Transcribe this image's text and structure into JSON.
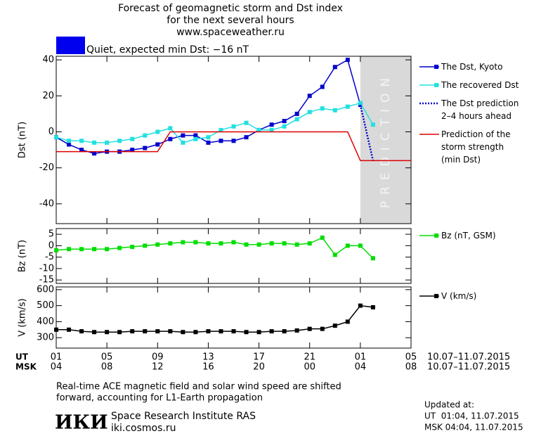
{
  "header": {
    "title_lines": [
      "Forecast of geomagnetic storm and Dst index",
      "for the next several hours",
      "www.spaceweather.ru"
    ],
    "status": "Quiet, expected min Dst: −16 nT",
    "status_color": "#0000ee"
  },
  "chart_data": [
    {
      "type": "line",
      "ylabel": "Dst (nT)",
      "xlim": [
        0,
        28
      ],
      "ylim": [
        -51,
        42
      ],
      "yticks": [
        -40,
        -20,
        0,
        20,
        40
      ],
      "prediction_region": {
        "x": [
          24,
          28
        ],
        "label": "PREDICTION",
        "color": "#d9d9d9"
      },
      "series": [
        {
          "name": "The Dst, Kyoto",
          "color": "#0000cc",
          "style": "line-markers",
          "x": [
            0,
            1,
            2,
            3,
            4,
            5,
            6,
            7,
            8,
            9,
            10,
            11,
            12,
            13,
            14,
            15,
            16,
            17,
            18,
            19,
            20,
            21,
            22,
            23,
            24
          ],
          "values": [
            -3,
            -7,
            -10,
            -12,
            -11,
            -11,
            -10,
            -9,
            -7,
            -4,
            -2,
            -2,
            -6,
            -5,
            -5,
            -3,
            1,
            4,
            6,
            10,
            20,
            25,
            36,
            40,
            15
          ]
        },
        {
          "name": "The recovered Dst",
          "color": "#22e0e0",
          "style": "line-markers",
          "x": [
            0,
            1,
            2,
            3,
            4,
            5,
            6,
            7,
            8,
            9,
            10,
            11,
            12,
            13,
            14,
            15,
            16,
            17,
            18,
            19,
            20,
            21,
            22,
            23,
            24,
            25
          ],
          "values": [
            -3,
            -5,
            -5,
            -6,
            -6,
            -5,
            -4,
            -2,
            0,
            2,
            -6,
            -4,
            -3,
            1,
            3,
            5,
            1,
            1,
            3,
            7,
            11,
            13,
            12,
            14,
            16,
            4
          ]
        },
        {
          "name": "The Dst prediction\n2–4 hours ahead",
          "color": "#0000cc",
          "style": "dotted",
          "x": [
            24,
            25
          ],
          "values": [
            15,
            -16
          ]
        },
        {
          "name": "Prediction of the\nstorm strength\n(min Dst)",
          "color": "#dd0000",
          "style": "line",
          "x": [
            0,
            8,
            9,
            23,
            24,
            28
          ],
          "values": [
            -11,
            -11,
            0,
            0,
            -16,
            -16
          ]
        }
      ]
    },
    {
      "type": "line",
      "ylabel": "Bz (nT)",
      "xlim": [
        0,
        28
      ],
      "ylim": [
        -16.5,
        7.5
      ],
      "yticks": [
        -15,
        -10,
        -5,
        0,
        5
      ],
      "series": [
        {
          "name": "Bz (nT, GSM)",
          "color": "#00dd00",
          "style": "line-markers",
          "x": [
            0,
            1,
            2,
            3,
            4,
            5,
            6,
            7,
            8,
            9,
            10,
            11,
            12,
            13,
            14,
            15,
            16,
            17,
            18,
            19,
            20,
            21,
            22,
            23,
            24,
            25
          ],
          "values": [
            -2,
            -1.5,
            -1.5,
            -1.5,
            -1.5,
            -1,
            -0.5,
            0,
            0.5,
            1,
            1.5,
            1.5,
            1,
            1,
            1.5,
            0.5,
            0.5,
            1,
            1,
            0.5,
            1,
            3.5,
            -4,
            0,
            0,
            -5.5
          ]
        }
      ]
    },
    {
      "type": "line",
      "ylabel": "V (km/s)",
      "xlim": [
        0,
        28
      ],
      "ylim": [
        235,
        617
      ],
      "yticks": [
        300,
        400,
        500,
        600
      ],
      "xticks": [
        {
          "value": 0,
          "label": "01"
        },
        {
          "value": 4,
          "label": "05"
        },
        {
          "value": 8,
          "label": "09"
        },
        {
          "value": 12,
          "label": "13"
        },
        {
          "value": 16,
          "label": "17"
        },
        {
          "value": 20,
          "label": "21"
        },
        {
          "value": 24,
          "label": "01"
        },
        {
          "value": 28,
          "label": "05"
        }
      ],
      "xticks_msk": [
        {
          "value": 0,
          "label": "04"
        },
        {
          "value": 4,
          "label": "08"
        },
        {
          "value": 8,
          "label": "12"
        },
        {
          "value": 12,
          "label": "16"
        },
        {
          "value": 16,
          "label": "20"
        },
        {
          "value": 20,
          "label": "00"
        },
        {
          "value": 24,
          "label": "04"
        },
        {
          "value": 28,
          "label": "08"
        }
      ],
      "x_rows": [
        "UT",
        "MSK"
      ],
      "date_range": "10.07–11.07.2015",
      "series": [
        {
          "name": "V (km/s)",
          "color": "#000000",
          "style": "line-markers",
          "x": [
            0,
            1,
            2,
            3,
            4,
            5,
            6,
            7,
            8,
            9,
            10,
            11,
            12,
            13,
            14,
            15,
            16,
            17,
            18,
            19,
            20,
            21,
            22,
            23,
            24,
            25
          ],
          "values": [
            350,
            350,
            340,
            335,
            335,
            335,
            340,
            340,
            340,
            340,
            335,
            335,
            340,
            340,
            340,
            335,
            335,
            340,
            340,
            345,
            355,
            355,
            375,
            400,
            500,
            490
          ]
        }
      ]
    }
  ],
  "footer": {
    "note_lines": [
      "Real-time ACE magnetic field and solar wind speed are shifted",
      "forward, accounting for L1-Earth propagation"
    ],
    "logo": "ИКИ",
    "institute": "Space Research Institute RAS",
    "site": "iki.cosmos.ru",
    "updated_lines": [
      "Updated at:",
      "UT  01:04, 11.07.2015",
      "MSK 04:04, 11.07.2015"
    ]
  }
}
